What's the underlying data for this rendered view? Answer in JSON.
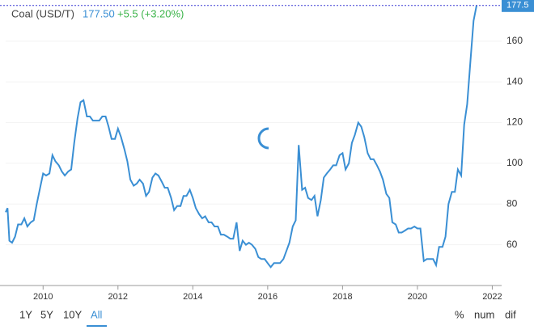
{
  "header": {
    "name": "Coal (USD/T)",
    "price": "177.50",
    "change": "+5.5 (+3.20%)"
  },
  "chart_data": {
    "type": "line",
    "x": [
      2009.0,
      2009.05,
      2009.1,
      2009.17,
      2009.25,
      2009.33,
      2009.42,
      2009.5,
      2009.58,
      2009.67,
      2009.75,
      2009.83,
      2009.92,
      2010.0,
      2010.08,
      2010.17,
      2010.25,
      2010.33,
      2010.42,
      2010.5,
      2010.58,
      2010.67,
      2010.75,
      2010.83,
      2010.92,
      2011.0,
      2011.08,
      2011.17,
      2011.25,
      2011.33,
      2011.42,
      2011.5,
      2011.58,
      2011.67,
      2011.75,
      2011.83,
      2011.92,
      2012.0,
      2012.08,
      2012.17,
      2012.25,
      2012.33,
      2012.42,
      2012.5,
      2012.58,
      2012.67,
      2012.75,
      2012.83,
      2012.92,
      2013.0,
      2013.08,
      2013.17,
      2013.25,
      2013.33,
      2013.42,
      2013.5,
      2013.58,
      2013.67,
      2013.75,
      2013.83,
      2013.92,
      2014.0,
      2014.08,
      2014.17,
      2014.25,
      2014.33,
      2014.42,
      2014.5,
      2014.58,
      2014.67,
      2014.75,
      2014.83,
      2014.92,
      2015.0,
      2015.08,
      2015.17,
      2015.25,
      2015.33,
      2015.42,
      2015.5,
      2015.58,
      2015.67,
      2015.75,
      2015.83,
      2015.92,
      2016.0,
      2016.08,
      2016.17,
      2016.25,
      2016.33,
      2016.42,
      2016.5,
      2016.58,
      2016.67,
      2016.75,
      2016.83,
      2016.92,
      2017.0,
      2017.08,
      2017.17,
      2017.25,
      2017.33,
      2017.42,
      2017.5,
      2017.58,
      2017.67,
      2017.75,
      2017.83,
      2017.92,
      2018.0,
      2018.08,
      2018.17,
      2018.25,
      2018.33,
      2018.42,
      2018.5,
      2018.58,
      2018.67,
      2018.75,
      2018.83,
      2018.92,
      2019.0,
      2019.08,
      2019.17,
      2019.25,
      2019.33,
      2019.42,
      2019.5,
      2019.58,
      2019.67,
      2019.75,
      2019.83,
      2019.92,
      2020.0,
      2020.08,
      2020.17,
      2020.25,
      2020.33,
      2020.42,
      2020.5,
      2020.58,
      2020.67,
      2020.75,
      2020.83,
      2020.92,
      2021.0,
      2021.08,
      2021.17,
      2021.25,
      2021.33,
      2021.42,
      2021.5,
      2021.58
    ],
    "series": [
      {
        "name": "Coal",
        "color": "#3a8fd4",
        "values": [
          76,
          78,
          62,
          61,
          64,
          70,
          70,
          73,
          69,
          71,
          72,
          80,
          88,
          95,
          94,
          95,
          104,
          101,
          99,
          96,
          94,
          96,
          97,
          110,
          122,
          130,
          131,
          123,
          123,
          121,
          121,
          121,
          123,
          123,
          118,
          112,
          112,
          117,
          113,
          107,
          101,
          92,
          89,
          90,
          92,
          90,
          84,
          86,
          93,
          95,
          94,
          91,
          88,
          88,
          83,
          77,
          79,
          79,
          84,
          84,
          87,
          83,
          78,
          75,
          73,
          74,
          71,
          71,
          69,
          69,
          65,
          65,
          64,
          63,
          63,
          71,
          57,
          62,
          60,
          61,
          60,
          58,
          54,
          53,
          53,
          51,
          49,
          51,
          51,
          51,
          53,
          57,
          61,
          69,
          72,
          109,
          87,
          88,
          83,
          82,
          84,
          74,
          82,
          93,
          95,
          97,
          99,
          99,
          104,
          105,
          97,
          100,
          110,
          114,
          120,
          118,
          113,
          105,
          102,
          102,
          99,
          96,
          92,
          85,
          83,
          71,
          70,
          66,
          66,
          67,
          68,
          68,
          69,
          68,
          68,
          52,
          53,
          53,
          53,
          50,
          59,
          59,
          64,
          80,
          86,
          86,
          97,
          94,
          119,
          129,
          151,
          170,
          177.5
        ]
      }
    ],
    "last_value": 177.5,
    "xlim": [
      2009,
      2022.25
    ],
    "xticks": [
      2010,
      2012,
      2014,
      2016,
      2018,
      2020,
      2022
    ],
    "ylim": [
      40,
      180
    ],
    "yticks": [
      60,
      80,
      100,
      120,
      140,
      160
    ]
  },
  "controls": {
    "ranges": [
      "1Y",
      "5Y",
      "10Y",
      "All"
    ],
    "modes": [
      "%",
      "num",
      "dif"
    ]
  }
}
